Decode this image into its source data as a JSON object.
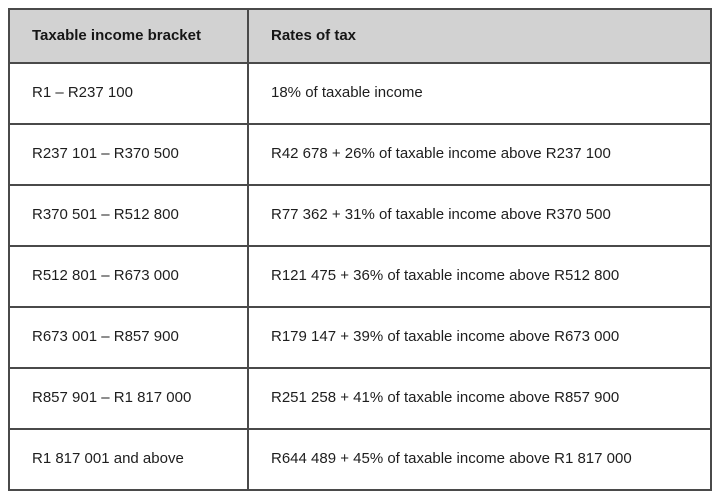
{
  "table": {
    "headers": {
      "bracket": "Taxable income bracket",
      "rate": "Rates of tax"
    },
    "rows": [
      {
        "bracket": "R1 – R237 100",
        "rate": "18% of taxable income"
      },
      {
        "bracket": "R237 101 – R370 500",
        "rate": "R42 678 + 26% of taxable income above R237 100"
      },
      {
        "bracket": "R370 501 – R512 800",
        "rate": "R77 362 + 31% of taxable income above R370 500"
      },
      {
        "bracket": "R512 801 – R673 000",
        "rate": "R121 475 + 36% of taxable income above R512 800"
      },
      {
        "bracket": "R673 001 – R857 900",
        "rate": "R179 147 + 39% of taxable income above R673 000"
      },
      {
        "bracket": "R857 901 – R1 817 000",
        "rate": "R251 258 + 41% of taxable income above R857 900"
      },
      {
        "bracket": "R1 817 001 and above",
        "rate": "R644 489 + 45% of taxable income above R1 817 000"
      }
    ],
    "colors": {
      "header_bg": "#d2d2d2",
      "border": "#4a4a4a",
      "text": "#1e1e1e"
    }
  }
}
